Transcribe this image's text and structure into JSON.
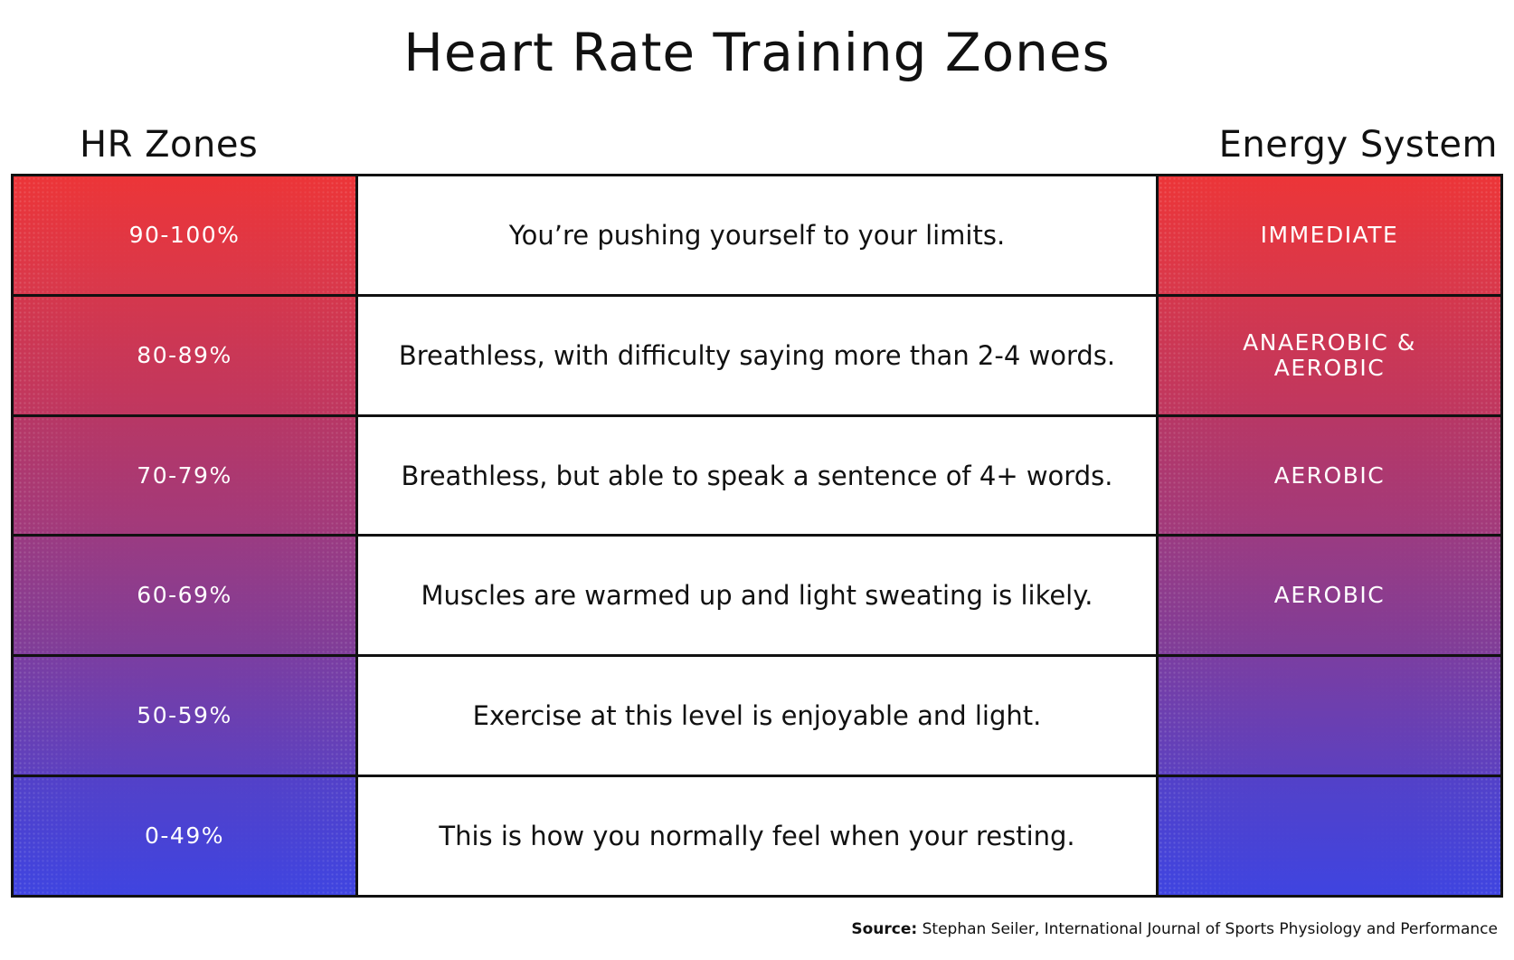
{
  "title": "Heart Rate Training Zones",
  "headers": {
    "left": "HR Zones",
    "right": "Energy System"
  },
  "rows": [
    {
      "zone": "90-100%",
      "description": "You’re pushing yourself to your limits.",
      "energy": "IMMEDIATE",
      "color_top": "#ec3538",
      "color_bottom": "#d8384c"
    },
    {
      "zone": "80-89%",
      "description": "Breathless, with difficulty saying more than 2-4 words.",
      "energy": "ANAEROBIC & AEROBIC",
      "color_top": "#d4374d",
      "color_bottom": "#bf3760"
    },
    {
      "zone": "70-79%",
      "description": "Breathless, but able to speak a sentence of 4+ words.",
      "energy": "AEROBIC",
      "color_top": "#b73765",
      "color_bottom": "#a13a7c"
    },
    {
      "zone": "60-69%",
      "description": "Muscles are warmed up and light sweating is likely.",
      "energy": "AEROBIC",
      "color_top": "#9a3b82",
      "color_bottom": "#7f3d99"
    },
    {
      "zone": "50-59%",
      "description": "Exercise at this level is enjoyable and light.",
      "energy": "",
      "color_top": "#7a3ea2",
      "color_bottom": "#5d40bf"
    },
    {
      "zone": "0-49%",
      "description": "This is how you normally feel when your resting.",
      "energy": "",
      "color_top": "#5341c8",
      "color_bottom": "#3f44e0"
    }
  ],
  "source": {
    "label": "Source:",
    "text": "Stephan Seiler, International Journal of Sports Physiology and Performance"
  }
}
